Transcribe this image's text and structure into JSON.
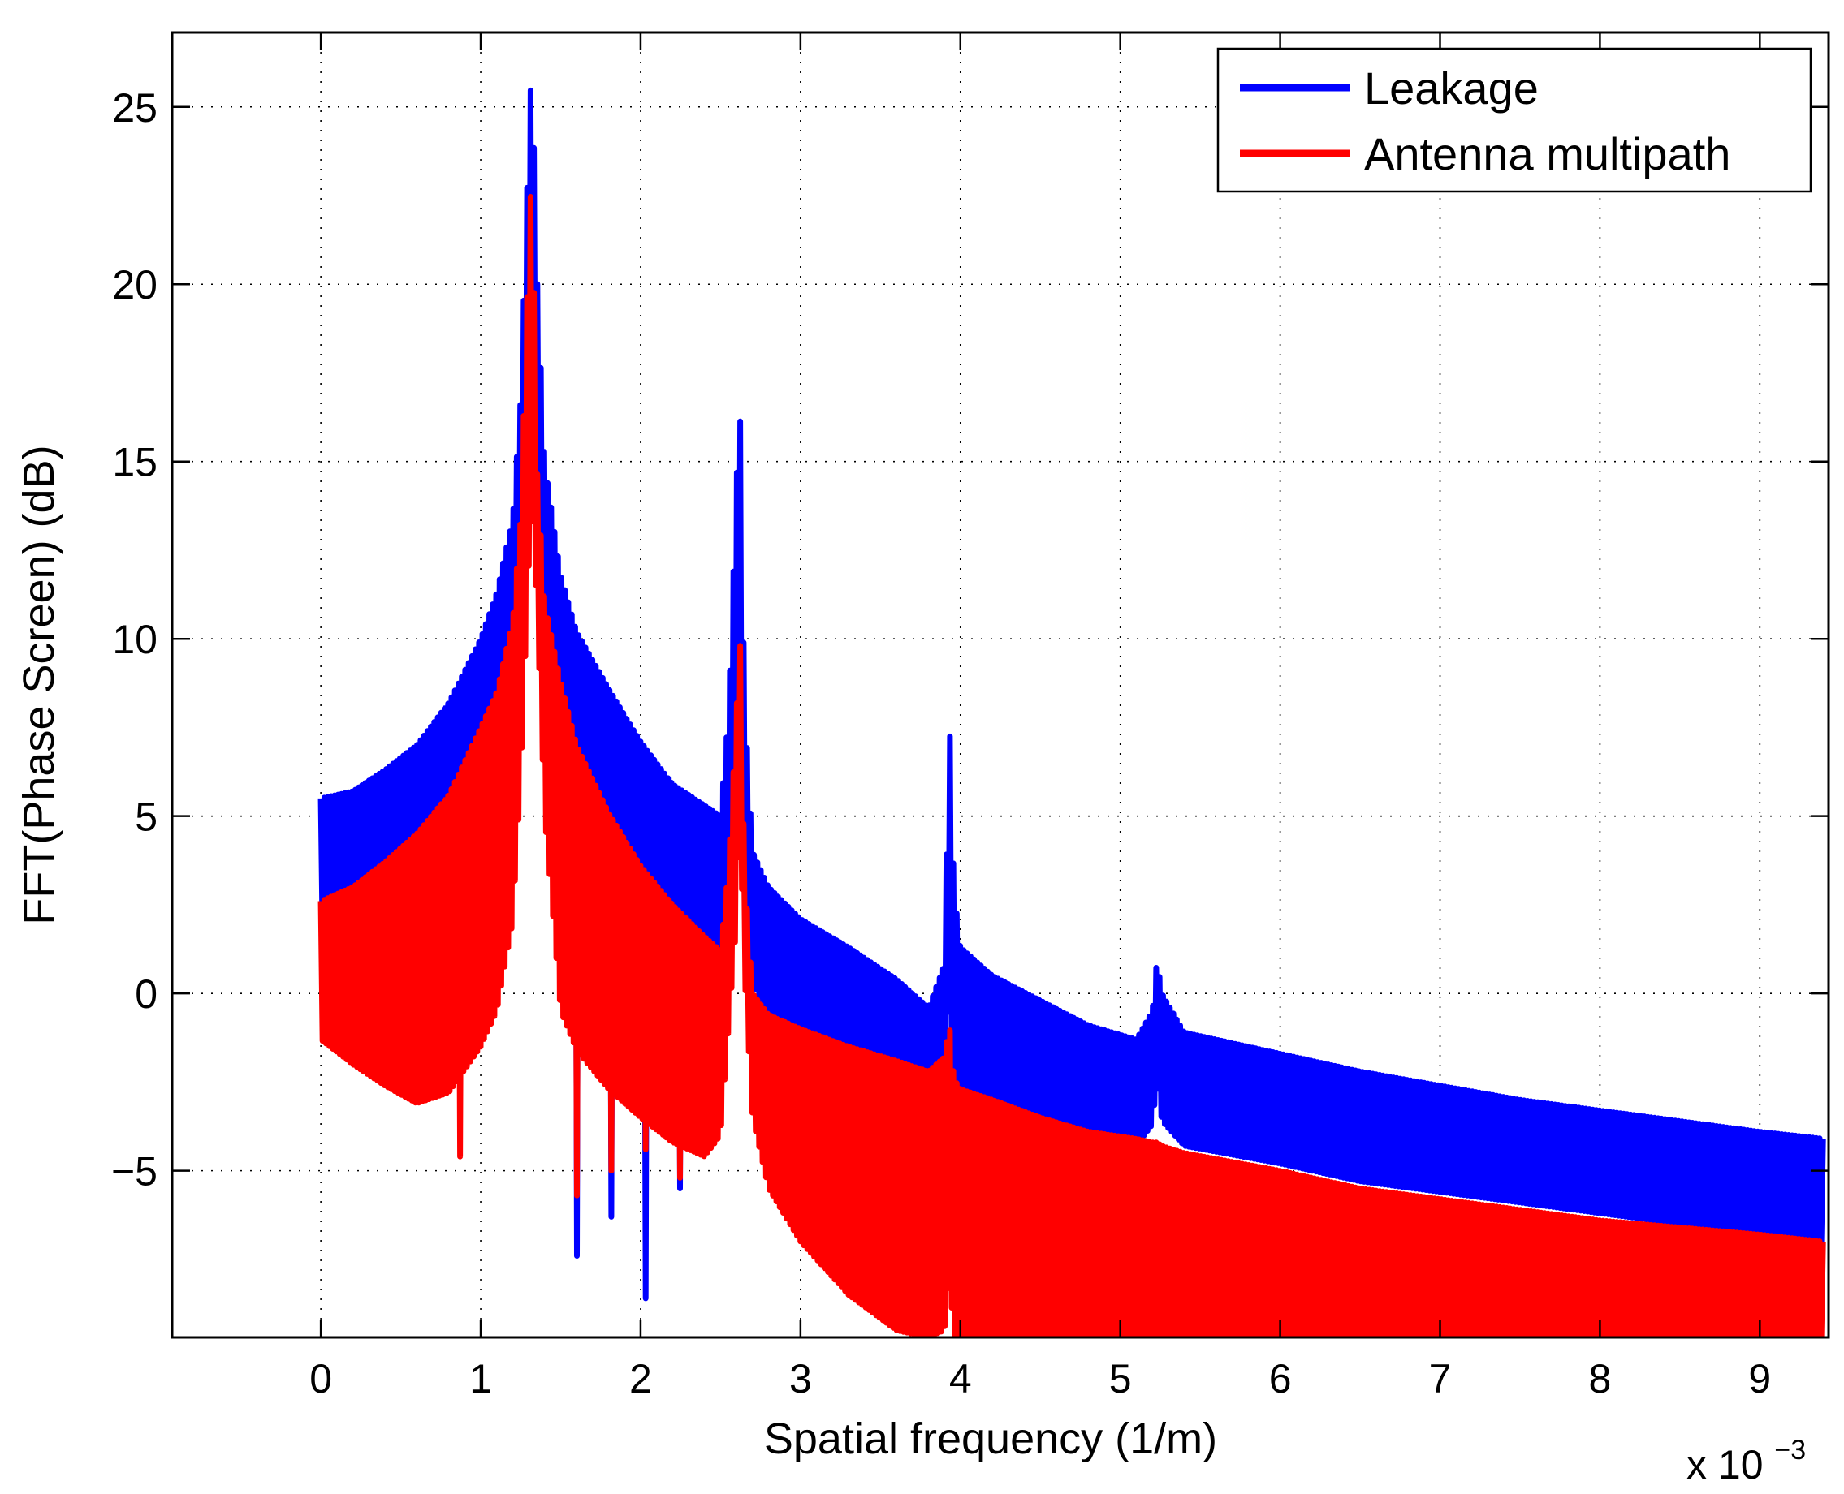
{
  "chart_data": {
    "type": "line",
    "title": "",
    "xlabel": "Spatial frequency (1/m)",
    "ylabel": "FFT(Phase Screen) (dB)",
    "x_exponent_label": "x 10",
    "x_exponent_power": "−3",
    "xlim": [
      -0.93,
      9.43
    ],
    "ylim": [
      -9.7,
      27.1
    ],
    "xticks": [
      0,
      1,
      2,
      3,
      4,
      5,
      6,
      7,
      8,
      9
    ],
    "xtick_labels": [
      "0",
      "1",
      "2",
      "3",
      "4",
      "5",
      "6",
      "7",
      "8",
      "9"
    ],
    "yticks": [
      -5,
      0,
      5,
      10,
      15,
      20,
      25
    ],
    "ytick_labels": [
      "−5",
      "0",
      "5",
      "10",
      "15",
      "20",
      "25"
    ],
    "grid": true,
    "legend_position": "top-right",
    "colors": {
      "leakage": "#0000ff",
      "antenna": "#ff0000",
      "axes": "#000000",
      "grid": "#000000"
    },
    "series": [
      {
        "name": "Leakage",
        "color": "#0000ff",
        "x": [
          0.0,
          0.2,
          0.4,
          0.6,
          0.8,
          1.0,
          1.1,
          1.2,
          1.25,
          1.3,
          1.32,
          1.35,
          1.4,
          1.5,
          1.6,
          1.8,
          2.0,
          2.2,
          2.4,
          2.5,
          2.55,
          2.6,
          2.62,
          2.65,
          2.7,
          2.8,
          3.0,
          3.3,
          3.6,
          3.8,
          3.9,
          3.93,
          3.96,
          4.0,
          4.2,
          4.5,
          4.8,
          5.1,
          5.2,
          5.23,
          5.26,
          5.4,
          6.0,
          6.5,
          7.0,
          7.5,
          8.0,
          8.5,
          9.0,
          9.4
        ],
        "upper": [
          5.5,
          5.7,
          6.3,
          7.0,
          8.2,
          10.0,
          11.3,
          13.4,
          16.8,
          24.2,
          26.4,
          20.5,
          15.0,
          11.8,
          10.2,
          8.6,
          7.1,
          5.9,
          5.3,
          5.0,
          8.0,
          14.5,
          17.0,
          8.3,
          4.0,
          3.0,
          2.1,
          1.3,
          0.4,
          -0.4,
          0.8,
          8.0,
          3.0,
          1.3,
          0.5,
          -0.2,
          -0.9,
          -1.3,
          -0.5,
          1.0,
          0.0,
          -1.1,
          -1.7,
          -2.2,
          -2.6,
          -3.0,
          -3.3,
          -3.6,
          -3.9,
          -4.1
        ],
        "lower": [
          1.7,
          0.9,
          0.5,
          0.9,
          2.0,
          3.5,
          5.0,
          8.0,
          10.5,
          14.0,
          14.5,
          13.0,
          8.0,
          3.2,
          1.5,
          0.0,
          0.5,
          -0.4,
          -0.9,
          -1.5,
          -0.2,
          3.0,
          5.0,
          2.0,
          0.3,
          -0.6,
          -1.2,
          -1.8,
          -2.3,
          -2.6,
          -2.5,
          0.0,
          -2.5,
          -2.8,
          -3.2,
          -3.6,
          -4.0,
          -4.3,
          -3.7,
          -2.5,
          -3.6,
          -4.3,
          -4.8,
          -5.3,
          -5.6,
          -5.9,
          -6.2,
          -6.5,
          -6.8,
          -7.0
        ],
        "dips": [
          [
            1.6,
            -7.4
          ],
          [
            1.82,
            -6.3
          ],
          [
            2.03,
            -8.6
          ],
          [
            2.25,
            -5.5
          ]
        ]
      },
      {
        "name": "Antenna multipath",
        "color": "#ff0000",
        "x": [
          0.0,
          0.2,
          0.4,
          0.6,
          0.8,
          1.0,
          1.1,
          1.2,
          1.25,
          1.3,
          1.32,
          1.35,
          1.4,
          1.5,
          1.6,
          1.8,
          2.0,
          2.2,
          2.4,
          2.5,
          2.55,
          2.6,
          2.62,
          2.65,
          2.7,
          2.8,
          3.0,
          3.3,
          3.6,
          3.8,
          3.9,
          3.93,
          3.96,
          4.0,
          4.2,
          4.5,
          4.8,
          5.1,
          5.2,
          5.23,
          5.26,
          5.4,
          6.0,
          6.5,
          7.0,
          7.5,
          8.0,
          8.5,
          9.0,
          9.4
        ],
        "upper": [
          2.6,
          3.0,
          3.7,
          4.5,
          5.6,
          7.5,
          8.5,
          10.5,
          13.4,
          21.2,
          23.4,
          15.0,
          11.0,
          8.8,
          7.0,
          5.1,
          3.6,
          2.5,
          1.6,
          1.2,
          3.6,
          8.0,
          10.5,
          3.5,
          0.0,
          -0.6,
          -1.0,
          -1.5,
          -1.9,
          -2.2,
          -1.8,
          -0.8,
          -2.4,
          -2.7,
          -3.0,
          -3.5,
          -3.9,
          -4.1,
          -4.2,
          -4.2,
          -4.3,
          -4.5,
          -5.0,
          -5.5,
          -5.8,
          -6.1,
          -6.4,
          -6.6,
          -6.8,
          -7.0
        ],
        "lower": [
          -1.3,
          -2.0,
          -2.6,
          -3.1,
          -2.8,
          -1.5,
          -0.5,
          2.0,
          6.0,
          12.0,
          13.5,
          11.0,
          5.0,
          -0.5,
          -1.6,
          -2.7,
          -3.5,
          -4.2,
          -4.6,
          -4.0,
          -1.0,
          2.0,
          5.0,
          0.5,
          -3.5,
          -5.5,
          -7.0,
          -8.5,
          -9.5,
          -9.7,
          -9.5,
          -8.0,
          -9.7,
          -9.7,
          -9.7,
          -9.7,
          -9.7,
          -9.7,
          -9.7,
          -9.7,
          -9.7,
          -9.7,
          -9.7,
          -9.7,
          -9.7,
          -9.7,
          -9.7,
          -9.7,
          -9.7,
          -9.7
        ],
        "dips": [
          [
            0.88,
            -4.6
          ],
          [
            1.6,
            -5.7
          ],
          [
            1.82,
            -5.0
          ],
          [
            2.03,
            -4.4
          ],
          [
            2.25,
            -5.2
          ]
        ]
      }
    ]
  }
}
